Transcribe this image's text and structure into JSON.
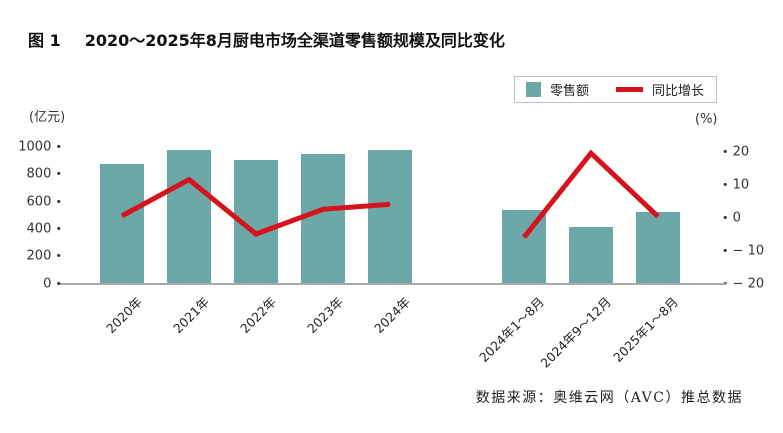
{
  "figure": {
    "label": "图 1",
    "title": "2020～2025年8月厨电市场全渠道零售额规模及同比变化"
  },
  "legend": {
    "items": [
      {
        "label": "零售额",
        "swatch": "bar",
        "color": "#6BA8A7"
      },
      {
        "label": "同比增长",
        "swatch": "line",
        "color": "#D6121C"
      }
    ]
  },
  "source": "数据来源：奥维云网（AVC）推总数据",
  "chart_data": {
    "type": "combo bar+line",
    "title": "2020～2025年8月厨电市场全渠道零售额规模及同比变化",
    "categories": [
      "2020年",
      "2021年",
      "2022年",
      "2023年",
      "2024年",
      "2024年1～8月",
      "2024年9～12月",
      "2025年1～8月"
    ],
    "group_split_index": 5,
    "series": [
      {
        "name": "零售额",
        "type": "bar",
        "axis": "left",
        "unit": "亿元",
        "color": "#6BA8A7",
        "values": [
          875,
          975,
          905,
          945,
          975,
          540,
          415,
          525
        ]
      },
      {
        "name": "同比增长",
        "type": "line",
        "axis": "right",
        "unit": "%",
        "color": "#D6121C",
        "values": [
          0.5,
          11.5,
          -5,
          2.5,
          4,
          -6,
          19.5,
          0.3
        ]
      }
    ],
    "left_axis": {
      "label": "(亿元)",
      "range": [
        0,
        1000
      ],
      "ticks": [
        {
          "v": 1000,
          "label": "1000"
        },
        {
          "v": 800,
          "label": "800"
        },
        {
          "v": 600,
          "label": "600"
        },
        {
          "v": 400,
          "label": "400"
        },
        {
          "v": 200,
          "label": "200"
        },
        {
          "v": 0,
          "label": "0"
        }
      ]
    },
    "right_axis": {
      "label": "(%)",
      "range": [
        -20,
        20
      ],
      "ticks": [
        {
          "v": 20,
          "label": "20"
        },
        {
          "v": 10,
          "label": "10"
        },
        {
          "v": 0,
          "label": "0"
        },
        {
          "v": -10,
          "label": "− 10"
        },
        {
          "v": -20,
          "label": "− 20"
        }
      ]
    },
    "grid": false,
    "legend_position": "top-right",
    "colors": {
      "bar": "#6BA8A7",
      "line": "#D6121C",
      "axis": "#A8A8A8"
    }
  }
}
